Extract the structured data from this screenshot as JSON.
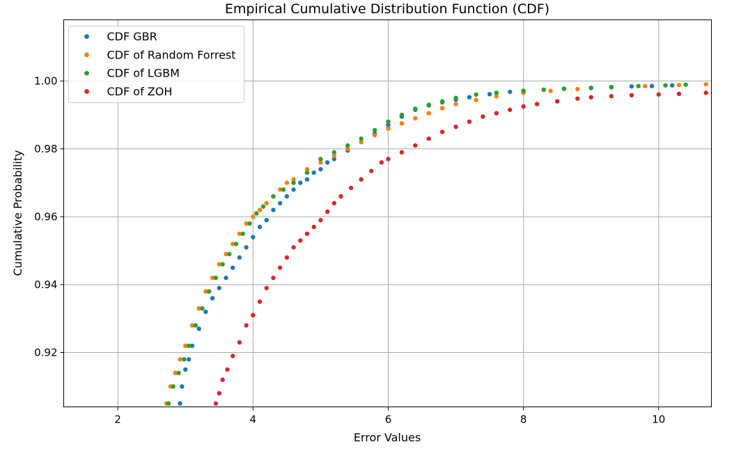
{
  "chart_data": {
    "type": "scatter",
    "title": "Empirical Cumulative Distribution Function (CDF)",
    "xlabel": "Error Values",
    "ylabel": "Cumulative Probability",
    "xlim": [
      1.2,
      10.78
    ],
    "ylim": [
      0.904,
      1.018
    ],
    "x_ticks": [
      2,
      4,
      6,
      8,
      10
    ],
    "x_tick_labels": [
      "2",
      "4",
      "6",
      "8",
      "10"
    ],
    "y_ticks": [
      0.92,
      0.94,
      0.96,
      0.98,
      1.0
    ],
    "y_tick_labels": [
      "0.92",
      "0.94",
      "0.96",
      "0.98",
      "1.00"
    ],
    "grid": true,
    "legend_position": "top-left",
    "series": [
      {
        "name": "CDF GBR",
        "color": "#1f77b4",
        "x": [
          2.92,
          2.95,
          3.0,
          3.05,
          3.1,
          3.2,
          3.3,
          3.4,
          3.5,
          3.6,
          3.7,
          3.8,
          3.9,
          4.0,
          4.1,
          4.2,
          4.3,
          4.4,
          4.5,
          4.6,
          4.7,
          4.8,
          4.9,
          5.0,
          5.1,
          5.2,
          5.4,
          5.6,
          5.8,
          6.0,
          6.2,
          6.4,
          6.6,
          6.8,
          7.0,
          7.2,
          7.5,
          7.8,
          8.0,
          8.3,
          8.6,
          9.0,
          9.3,
          9.6,
          9.9,
          10.2
        ],
        "y": [
          0.905,
          0.91,
          0.915,
          0.918,
          0.922,
          0.927,
          0.932,
          0.936,
          0.939,
          0.942,
          0.945,
          0.948,
          0.951,
          0.954,
          0.957,
          0.959,
          0.962,
          0.964,
          0.966,
          0.968,
          0.97,
          0.971,
          0.973,
          0.974,
          0.976,
          0.977,
          0.9795,
          0.982,
          0.9845,
          0.987,
          0.9895,
          0.9915,
          0.9928,
          0.9937,
          0.9945,
          0.9952,
          0.9961,
          0.9968,
          0.9971,
          0.9974,
          0.9977,
          0.9979,
          0.9982,
          0.9984,
          0.9985,
          0.9987
        ]
      },
      {
        "name": "CDF of Random Forrest",
        "color": "#ff7f0e",
        "x": [
          2.72,
          2.78,
          2.85,
          2.92,
          3.0,
          3.1,
          3.2,
          3.3,
          3.4,
          3.5,
          3.6,
          3.7,
          3.8,
          3.9,
          4.0,
          4.1,
          4.2,
          4.3,
          4.4,
          4.5,
          4.6,
          4.8,
          5.0,
          5.2,
          5.4,
          5.6,
          5.8,
          6.0,
          6.2,
          6.4,
          6.6,
          6.8,
          7.0,
          7.3,
          7.6,
          8.0,
          8.4,
          8.8,
          9.3,
          9.8,
          10.3,
          10.7
        ],
        "y": [
          0.905,
          0.91,
          0.914,
          0.918,
          0.922,
          0.928,
          0.933,
          0.938,
          0.942,
          0.946,
          0.949,
          0.952,
          0.955,
          0.958,
          0.96,
          0.962,
          0.964,
          0.966,
          0.968,
          0.97,
          0.971,
          0.974,
          0.976,
          0.978,
          0.98,
          0.982,
          0.984,
          0.986,
          0.9875,
          0.989,
          0.9905,
          0.992,
          0.9932,
          0.9944,
          0.9955,
          0.9965,
          0.9971,
          0.9976,
          0.9981,
          0.9985,
          0.9988,
          0.999
        ]
      },
      {
        "name": "CDF of LGBM",
        "color": "#2ca02c",
        "x": [
          2.75,
          2.82,
          2.9,
          2.98,
          3.05,
          3.15,
          3.25,
          3.35,
          3.45,
          3.55,
          3.65,
          3.75,
          3.85,
          3.95,
          4.05,
          4.15,
          4.3,
          4.45,
          4.6,
          4.8,
          5.0,
          5.2,
          5.4,
          5.6,
          5.8,
          6.0,
          6.2,
          6.4,
          6.6,
          6.8,
          7.0,
          7.3,
          7.6,
          8.0,
          8.3,
          8.6,
          9.0,
          9.3,
          9.7,
          10.1,
          10.4
        ],
        "y": [
          0.905,
          0.91,
          0.914,
          0.918,
          0.922,
          0.928,
          0.933,
          0.938,
          0.942,
          0.946,
          0.949,
          0.952,
          0.955,
          0.958,
          0.961,
          0.963,
          0.966,
          0.968,
          0.97,
          0.973,
          0.977,
          0.979,
          0.981,
          0.983,
          0.9855,
          0.988,
          0.99,
          0.9918,
          0.993,
          0.994,
          0.995,
          0.996,
          0.9965,
          0.997,
          0.9974,
          0.9977,
          0.998,
          0.9982,
          0.9985,
          0.9987,
          0.9989
        ]
      },
      {
        "name": "CDF of ZOH",
        "color": "#d62728",
        "x": [
          3.45,
          3.5,
          3.55,
          3.62,
          3.7,
          3.8,
          3.9,
          4.0,
          4.1,
          4.2,
          4.3,
          4.4,
          4.5,
          4.6,
          4.7,
          4.8,
          4.9,
          5.0,
          5.1,
          5.2,
          5.3,
          5.45,
          5.6,
          5.75,
          5.9,
          6.0,
          6.2,
          6.4,
          6.6,
          6.8,
          7.0,
          7.2,
          7.4,
          7.6,
          7.8,
          8.0,
          8.2,
          8.5,
          8.8,
          9.0,
          9.3,
          9.6,
          10.0,
          10.3,
          10.7
        ],
        "y": [
          0.905,
          0.908,
          0.912,
          0.915,
          0.919,
          0.923,
          0.928,
          0.931,
          0.935,
          0.939,
          0.942,
          0.945,
          0.948,
          0.951,
          0.953,
          0.955,
          0.957,
          0.959,
          0.9615,
          0.964,
          0.966,
          0.9685,
          0.971,
          0.9735,
          0.976,
          0.977,
          0.979,
          0.981,
          0.983,
          0.985,
          0.9865,
          0.988,
          0.9895,
          0.9905,
          0.9915,
          0.9925,
          0.9932,
          0.994,
          0.9948,
          0.9952,
          0.9955,
          0.9958,
          0.996,
          0.9962,
          0.9965
        ]
      }
    ]
  }
}
